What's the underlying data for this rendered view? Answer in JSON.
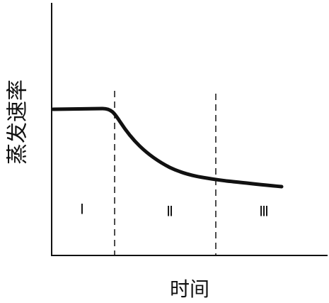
{
  "axis_labels": {
    "y": "蒸发速率",
    "x": "时间"
  },
  "stages": [
    "Ⅰ",
    "Ⅱ",
    "Ⅲ"
  ]
}
